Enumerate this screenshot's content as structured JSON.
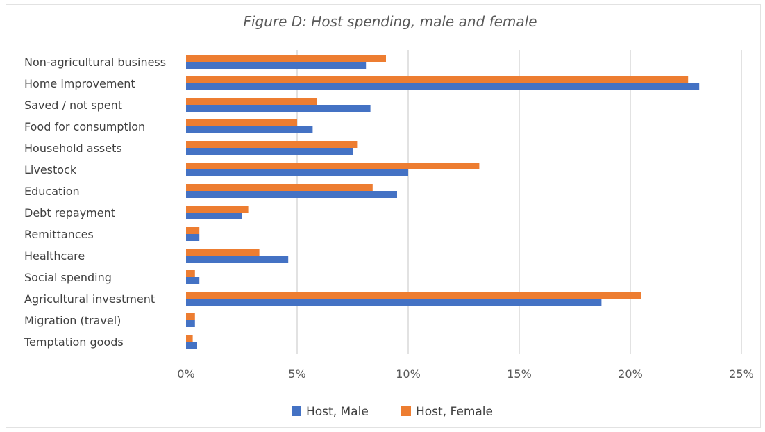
{
  "chart_data": {
    "type": "bar",
    "orientation": "horizontal",
    "title": "Figure D: Host spending, male and female",
    "categories": [
      "Non-agricultural business",
      "Home improvement",
      "Saved / not spent",
      "Food for consumption",
      "Household assets",
      "Livestock",
      "Education",
      "Debt repayment",
      "Remittances",
      "Healthcare",
      "Social spending",
      "Agricultural investment",
      "Migration (travel)",
      "Temptation goods"
    ],
    "series": [
      {
        "name": "Host, Male",
        "color": "#4472C4",
        "values": [
          8.1,
          23.1,
          8.3,
          5.7,
          7.5,
          10.0,
          9.5,
          2.5,
          0.6,
          4.6,
          0.6,
          18.7,
          0.4,
          0.5
        ]
      },
      {
        "name": "Host, Female",
        "color": "#ED7D31",
        "values": [
          9.0,
          22.6,
          5.9,
          5.0,
          7.7,
          13.2,
          8.4,
          2.8,
          0.6,
          3.3,
          0.4,
          20.5,
          0.4,
          0.3
        ]
      }
    ],
    "xlim": [
      0,
      25
    ],
    "xticks": [
      0,
      5,
      10,
      15,
      20,
      25
    ],
    "xtick_labels": [
      "0%",
      "5%",
      "10%",
      "15%",
      "20%",
      "25%"
    ],
    "xlabel": "",
    "ylabel": "",
    "grid": true,
    "legend": "bottom"
  }
}
